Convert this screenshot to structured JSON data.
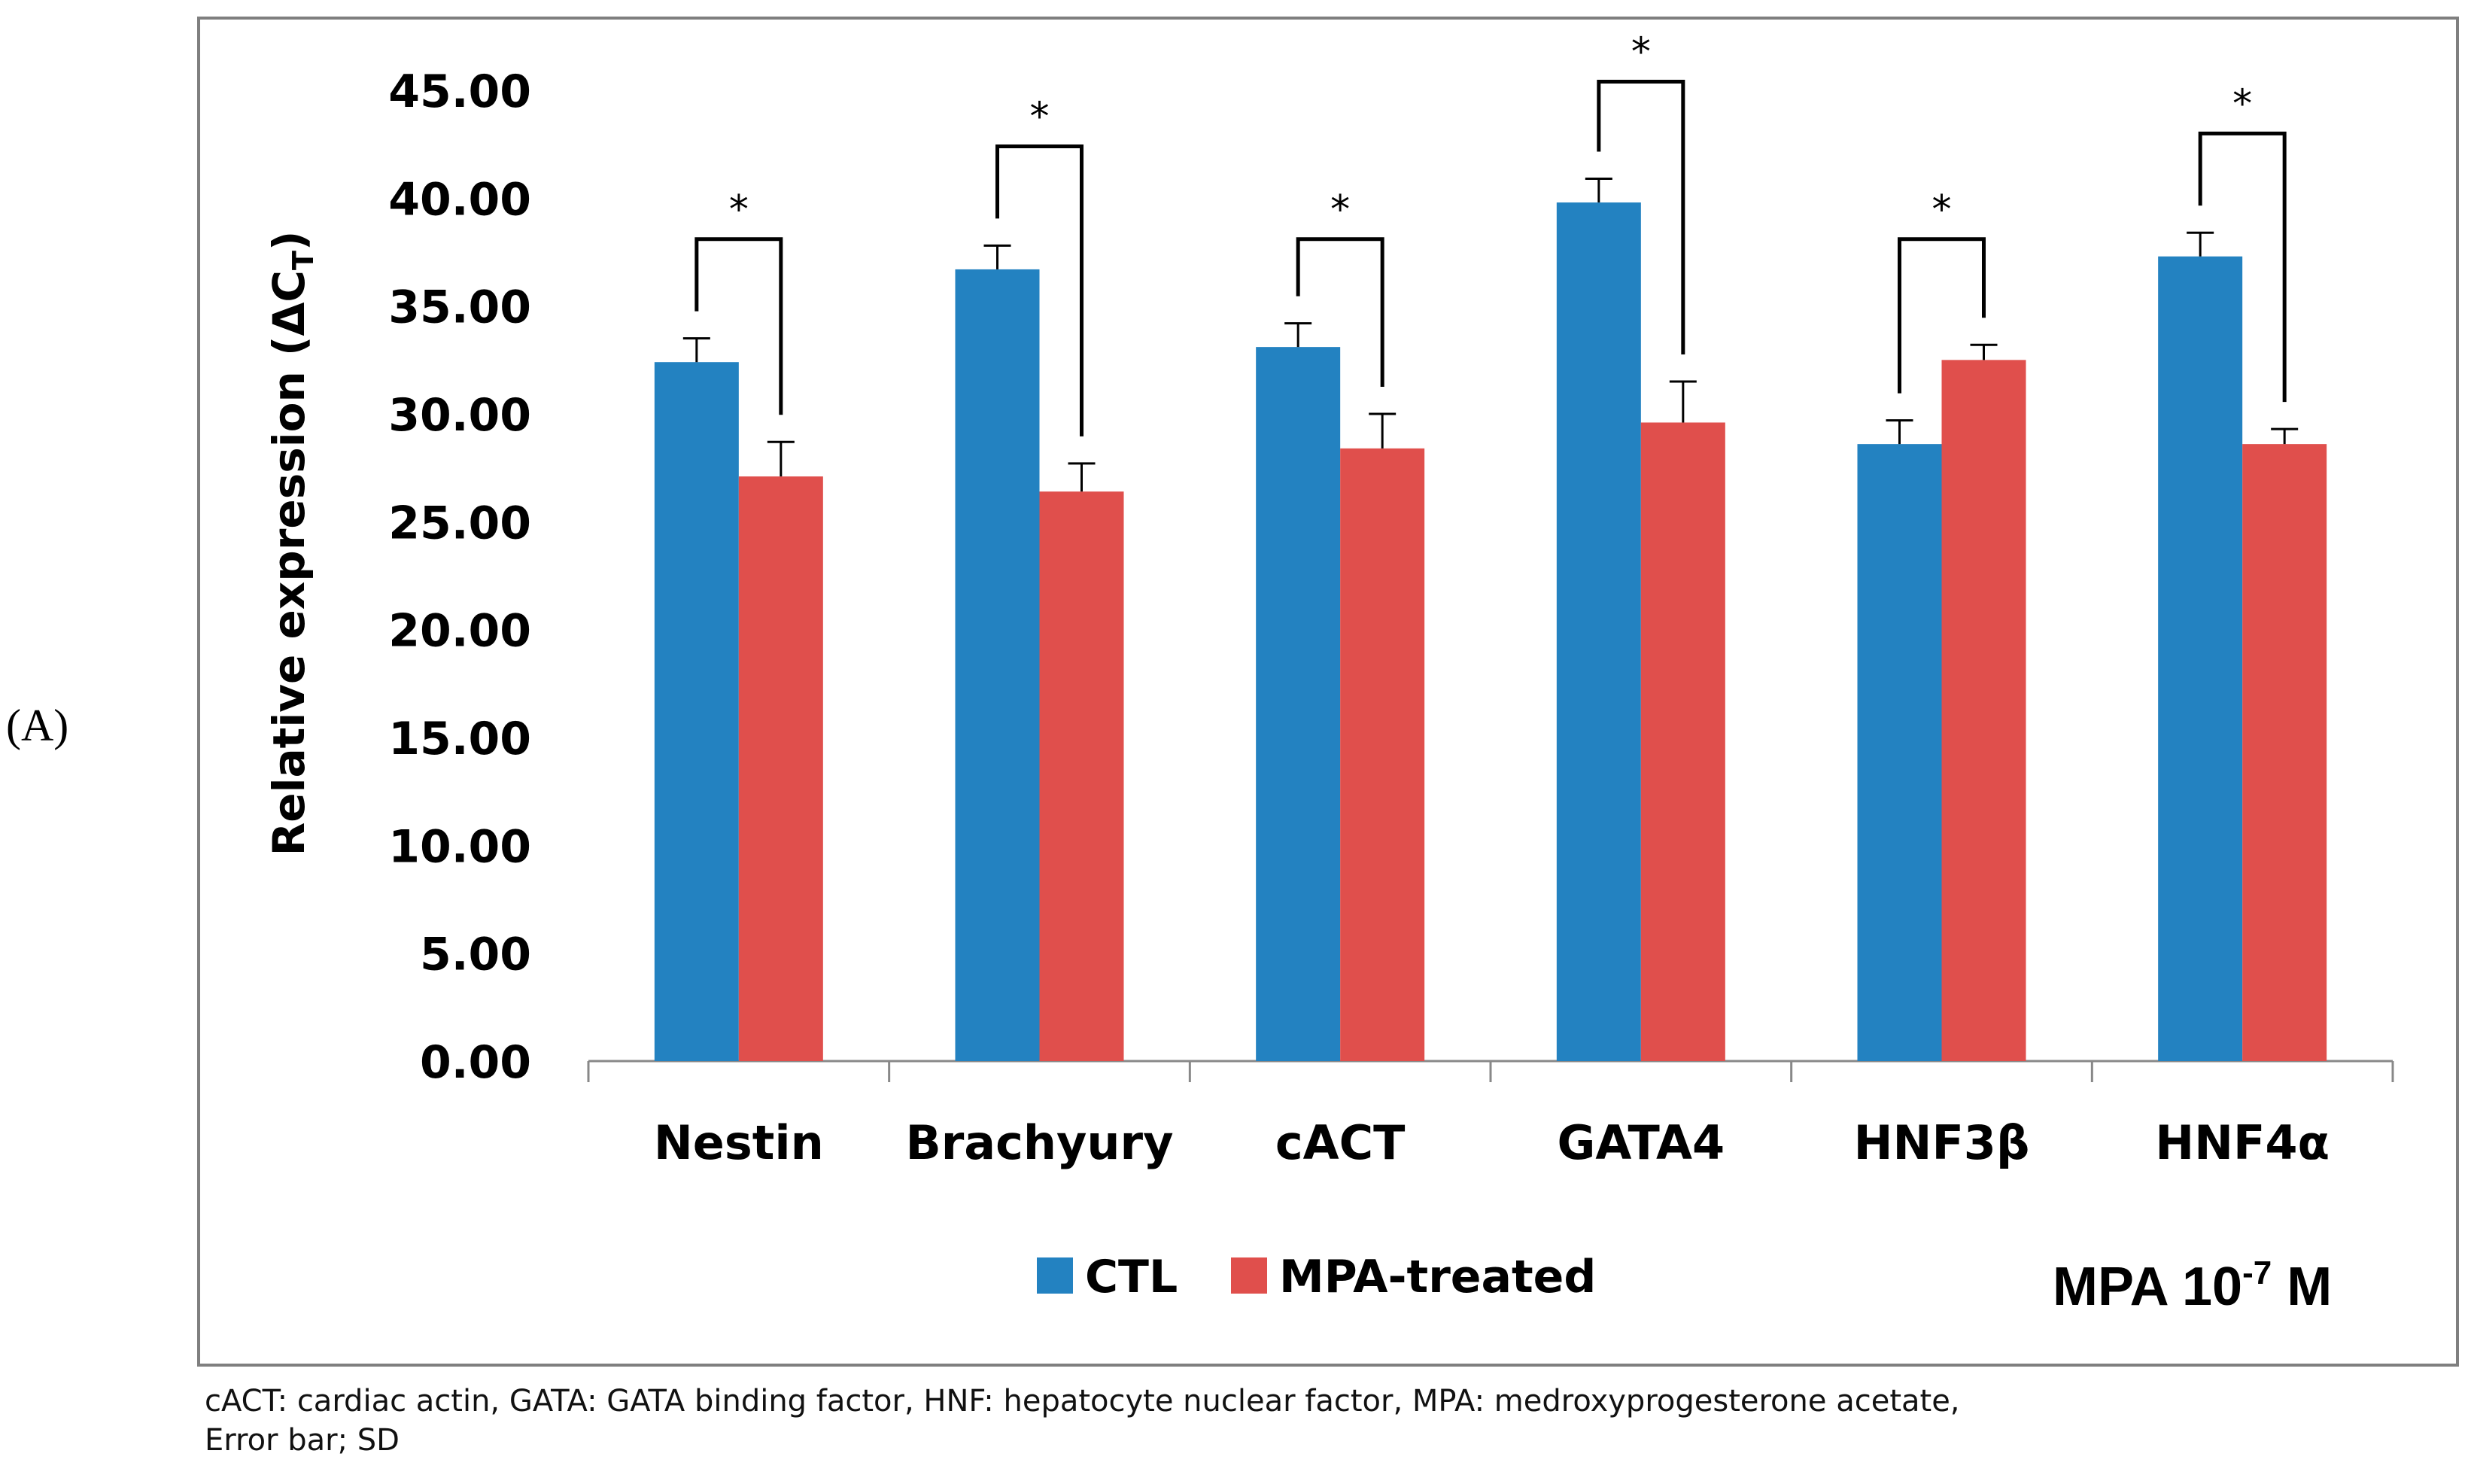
{
  "panel_label": "(A)",
  "chart_data": {
    "type": "bar",
    "title": "",
    "xlabel": "",
    "ylabel": "Relative expression (ΔC",
    "ylabel_subscript": "T",
    "ylim": [
      0,
      45
    ],
    "yticks": [
      "0.00",
      "5.00",
      "10.00",
      "15.00",
      "20.00",
      "25.00",
      "30.00",
      "35.00",
      "40.00",
      "45.00"
    ],
    "categories": [
      "Nestin",
      "Brachyury",
      "cACT",
      "GATA4",
      "HNF3β",
      "HNF4α"
    ],
    "series": [
      {
        "name": "CTL",
        "color": "#2382c1",
        "values": [
          32.4,
          36.7,
          33.1,
          39.8,
          28.6,
          37.3
        ],
        "errors": [
          1.1,
          1.1,
          1.1,
          1.1,
          1.1,
          1.1
        ]
      },
      {
        "name": "MPA-treated",
        "color": "#e04f4c",
        "values": [
          27.1,
          26.4,
          28.4,
          29.6,
          32.5,
          28.6
        ],
        "errors": [
          1.6,
          1.3,
          1.6,
          1.9,
          0.7,
          0.7
        ]
      }
    ],
    "significance": [
      {
        "label": "*",
        "bracket_top": 38.1
      },
      {
        "label": "*",
        "bracket_top": 42.4
      },
      {
        "label": "*",
        "bracket_top": 38.1
      },
      {
        "label": "*",
        "bracket_top": 45.4
      },
      {
        "label": "*",
        "bracket_top": 38.1
      },
      {
        "label": "*",
        "bracket_top": 43.0
      }
    ],
    "legend_position": "bottom",
    "annotation": {
      "main": "MPA 10",
      "superscript": "-7",
      "suffix": " M"
    }
  },
  "footnote": {
    "line1": "cACT: cardiac actin, GATA: GATA binding factor, HNF: hepatocyte nuclear factor, MPA: medroxyprogesterone acetate,",
    "line2": "Error bar; SD"
  }
}
